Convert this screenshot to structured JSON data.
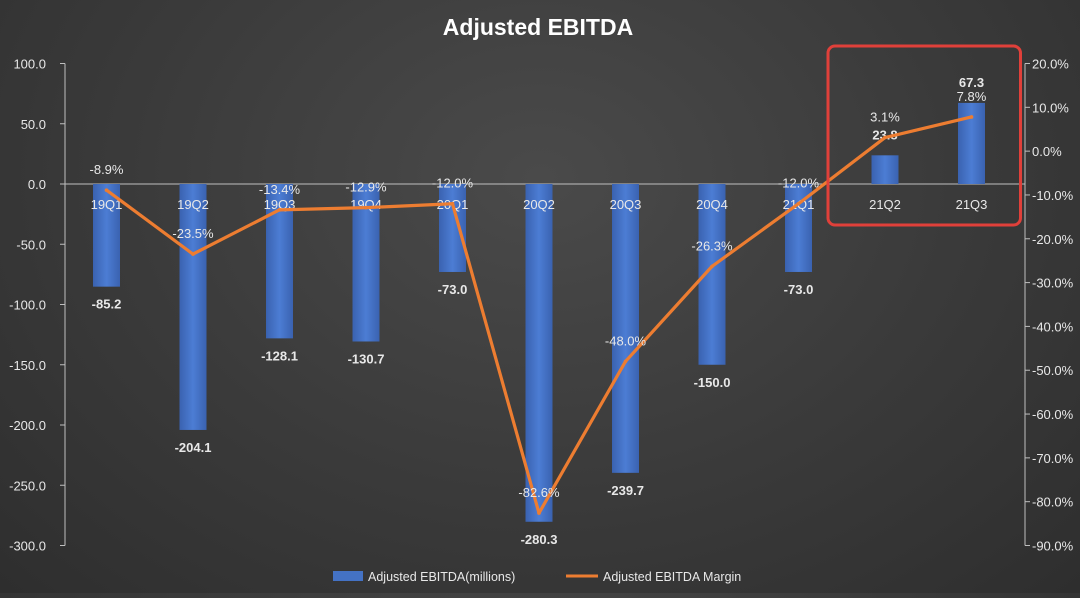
{
  "chart_data": {
    "type": "bar",
    "title": "Adjusted EBITDA",
    "categories": [
      "19Q1",
      "19Q2",
      "19Q3",
      "19Q4",
      "20Q1",
      "20Q2",
      "20Q3",
      "20Q4",
      "21Q1",
      "21Q2",
      "21Q3"
    ],
    "series": [
      {
        "name": "Adjusted EBITDA(millions)",
        "type": "bar",
        "axis": "left",
        "values": [
          -85.2,
          -204.1,
          -128.1,
          -130.7,
          -73.0,
          -280.3,
          -239.7,
          -150.0,
          -73.0,
          23.8,
          67.3
        ],
        "labels": [
          "-85.2",
          "-204.1",
          "-128.1",
          "-130.7",
          "-73.0",
          "-280.3",
          "-239.7",
          "-150.0",
          "-73.0",
          "23.8",
          "67.3"
        ]
      },
      {
        "name": "Adjusted EBITDA Margin",
        "type": "line",
        "axis": "right",
        "values": [
          -8.9,
          -23.5,
          -13.4,
          -12.9,
          -12.0,
          -82.6,
          -48.0,
          -26.3,
          -12.0,
          3.1,
          7.8
        ],
        "labels": [
          "-8.9%",
          "-23.5%",
          "-13.4%",
          "-12.9%",
          "-12.0%",
          "-82.6%",
          "-48.0%",
          "-26.3%",
          "-12.0%",
          "3.1%",
          "7.8%"
        ]
      }
    ],
    "y_left": {
      "range": [
        -300,
        100
      ],
      "ticks": [
        "100.0",
        "50.0",
        "0.0",
        "-50.0",
        "-100.0",
        "-150.0",
        "-200.0",
        "-250.0",
        "-300.0"
      ],
      "tick_values": [
        100,
        50,
        0,
        -50,
        -100,
        -150,
        -200,
        -250,
        -300
      ]
    },
    "y_right": {
      "range": [
        -90,
        20
      ],
      "ticks": [
        "20.0%",
        "10.0%",
        "0.0%",
        "-10.0%",
        "-20.0%",
        "-30.0%",
        "-40.0%",
        "-50.0%",
        "-60.0%",
        "-70.0%",
        "-80.0%",
        "-90.0%"
      ],
      "tick_values": [
        20,
        10,
        0,
        -10,
        -20,
        -30,
        -40,
        -50,
        -60,
        -70,
        -80,
        -90
      ]
    },
    "highlight": {
      "categories": [
        "21Q2",
        "21Q3"
      ],
      "color": "#e0403a"
    },
    "legend_position": "bottom",
    "grid": false,
    "colors": {
      "bar": "#4472c4",
      "line": "#ed7d31",
      "text": "#e8e8e8",
      "axis": "#bfbfbf"
    }
  }
}
